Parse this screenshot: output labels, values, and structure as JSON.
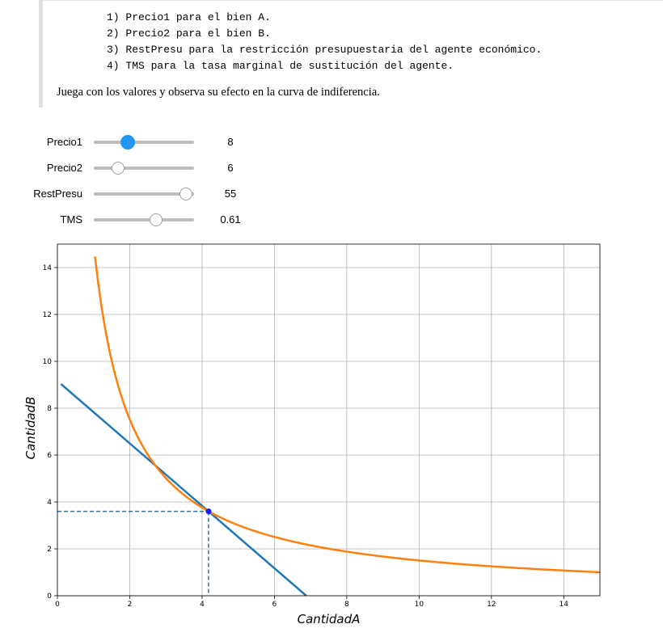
{
  "instructions": [
    "1) Precio1 para el bien A.",
    "2) Precio2 para el bien B.",
    "3) RestPresu para la restricción presupuestaria del agente económico.",
    "4) TMS para la tasa marginal de sustitución del agente."
  ],
  "paragraph": "Juega con los valores y observa su efecto en la curva de indiferencia.",
  "sliders": [
    {
      "label": "Precio1",
      "value": "8",
      "fraction": 0.33,
      "active": true
    },
    {
      "label": "Precio2",
      "value": "6",
      "fraction": 0.24,
      "active": false
    },
    {
      "label": "RestPresu",
      "value": "55",
      "fraction": 0.92,
      "active": false
    },
    {
      "label": "TMS",
      "value": "0.61",
      "fraction": 0.62,
      "active": false
    }
  ],
  "chart_data": {
    "type": "line",
    "xlabel": "CantidadA",
    "ylabel": "CantidadB",
    "xlim": [
      0,
      15
    ],
    "ylim": [
      0,
      15
    ],
    "xticks": [
      0,
      2,
      4,
      6,
      8,
      10,
      12,
      14
    ],
    "yticks": [
      0,
      2,
      4,
      6,
      8,
      10,
      12,
      14
    ],
    "grid": true,
    "series": [
      {
        "kind": "budget_line",
        "color": "#1f77b4",
        "points": [
          [
            0.1,
            9.03
          ],
          [
            6.88,
            0
          ]
        ]
      },
      {
        "kind": "indifference_curve",
        "color": "#ff7f0e",
        "product": 15.05,
        "x_range": [
          1.04,
          15
        ]
      }
    ],
    "optimum": {
      "x": 4.18,
      "y": 3.6,
      "color": "#1a1aff"
    },
    "guide_color": "#1f77b4"
  }
}
